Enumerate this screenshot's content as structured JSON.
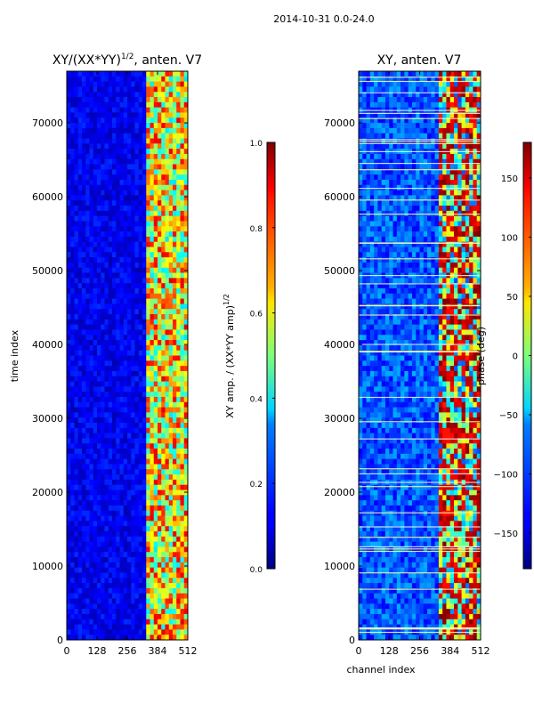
{
  "figure": {
    "suptitle": "2014-10-31 0.0-24.0"
  },
  "chart_data": [
    {
      "id": "left",
      "type": "heatmap",
      "title_main": "XY/(XX*YY)",
      "title_sup": "1/2",
      "title_rest": ", anten. V7",
      "xlabel": "",
      "ylabel": "time index",
      "xlim": [
        0,
        512
      ],
      "ylim": [
        0,
        77000
      ],
      "xticks": [
        0,
        128,
        256,
        384,
        512
      ],
      "yticks": [
        0,
        10000,
        20000,
        30000,
        40000,
        50000,
        60000,
        70000
      ],
      "band_channels": [
        330,
        512
      ],
      "colorbar": {
        "label_main": "XY amp. / (XX*YY amp)",
        "label_sup": "1/2",
        "range": [
          0.0,
          1.0
        ],
        "ticks": [
          "0.0",
          "0.2",
          "0.4",
          "0.6",
          "0.8",
          "1.0"
        ],
        "tick_values": [
          0.0,
          0.2,
          0.4,
          0.6,
          0.8,
          1.0
        ]
      }
    },
    {
      "id": "right",
      "type": "heatmap",
      "title": "XY, anten. V7",
      "xlabel": "channel index",
      "ylabel": "",
      "xlim": [
        0,
        512
      ],
      "ylim": [
        0,
        77000
      ],
      "xticks": [
        0,
        128,
        256,
        384,
        512
      ],
      "yticks": [
        0,
        10000,
        20000,
        30000,
        40000,
        50000,
        60000,
        70000
      ],
      "band_channels": [
        330,
        512
      ],
      "colorbar": {
        "label": "phase (deg)",
        "range": [
          -180,
          180
        ],
        "ticks": [
          "−150",
          "−100",
          "−50",
          "0",
          "50",
          "100",
          "150"
        ],
        "tick_values": [
          -150,
          -100,
          -50,
          0,
          50,
          100,
          150
        ]
      }
    }
  ]
}
